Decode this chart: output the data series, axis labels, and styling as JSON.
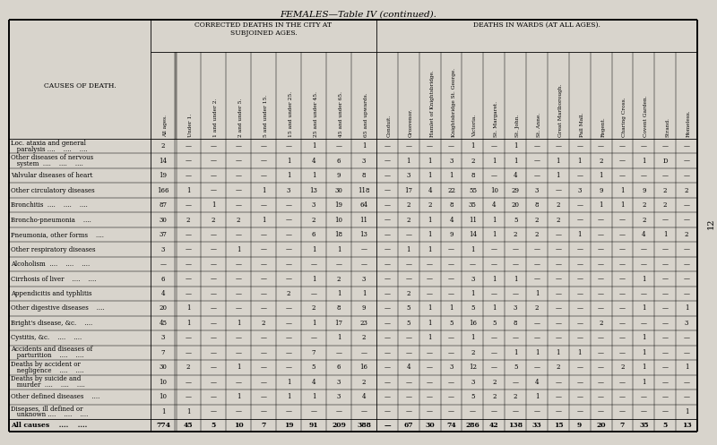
{
  "title": "FEMALES—Table IV (continued).",
  "bg_color": "#d8d4cc",
  "causes": [
    [
      "Loc. ataxia and general",
      "   paralysis ....    ....    ...."
    ],
    [
      "Other diseases of nervous",
      "   system  ....    ....    ...."
    ],
    [
      "Valvular diseases of heart",
      ""
    ],
    [
      "Other circulatory diseases",
      ""
    ],
    [
      "Bronchitis  ....    ....    ....",
      ""
    ],
    [
      "Broncho-pneumonia    ....",
      ""
    ],
    [
      "Pneumonia, other forms    ....",
      ""
    ],
    [
      "Other respiratory diseases",
      ""
    ],
    [
      "Alcoholism  ....    ....    ....",
      ""
    ],
    [
      "Cirrhosis of liver    ....    ....",
      ""
    ],
    [
      "Appendicitis and typhlitis",
      ""
    ],
    [
      "Other digestive diseases    ....",
      ""
    ],
    [
      "Bright's disease, &c.    ....",
      ""
    ],
    [
      "Cystitis, &c.    ....    ....",
      ""
    ],
    [
      "Accidents and diseases of",
      "   parturition    ....    ...."
    ],
    [
      "Deaths by accident or",
      "   negligence    ....    ...."
    ],
    [
      "Deaths by suicide and",
      "   murder  ....    ....    ...."
    ],
    [
      "Other defined diseases    ....",
      ""
    ],
    [
      "Diseases, ill defined or",
      "   unknown ....    ....    ...."
    ],
    [
      "All causes    ....    ....",
      ""
    ]
  ],
  "age_headers": [
    "All ages.",
    "Under 1.",
    "1 and under 2.",
    "2 and under 5.",
    "5 and under 15.",
    "15 and under 25.",
    "25 and under 45.",
    "45 and under 65.",
    "65 and upwards."
  ],
  "ward_headers": [
    "Conduit.",
    "Grosvenor.",
    "Hamlet of Knightsbridge.",
    "Knightsbridge St. George.",
    "Victoria.",
    "St. Margaret.",
    "St. John.",
    "St. Anne.",
    "Great Marlborough.",
    "Pall Mall.",
    "Regent.",
    "Charing Cross.",
    "Covent Garden.",
    "Strand.",
    "Homeless."
  ],
  "data": [
    [
      2,
      "—",
      "—",
      "—",
      "—",
      "—",
      1,
      "—",
      1,
      "—",
      "—",
      "—",
      "—",
      1,
      "—",
      1,
      "—",
      "—",
      "—",
      "—",
      "—",
      "—",
      "—",
      "—"
    ],
    [
      14,
      "—",
      "—",
      "—",
      "—",
      1,
      4,
      6,
      3,
      "—",
      1,
      1,
      3,
      2,
      1,
      1,
      "—",
      1,
      1,
      2,
      "—",
      1,
      "D",
      "—"
    ],
    [
      19,
      "—",
      "—",
      "—",
      "—",
      1,
      1,
      9,
      8,
      "—",
      3,
      1,
      1,
      8,
      "—",
      4,
      "—",
      1,
      "—",
      1,
      "—",
      "—",
      "—",
      "—"
    ],
    [
      166,
      1,
      "—",
      "—",
      1,
      3,
      13,
      30,
      118,
      "—",
      17,
      4,
      22,
      55,
      10,
      29,
      3,
      "—",
      3,
      9,
      1,
      9,
      2,
      2
    ],
    [
      87,
      "—",
      1,
      "—",
      "—",
      "—",
      3,
      19,
      64,
      "—",
      2,
      2,
      8,
      35,
      4,
      20,
      8,
      2,
      "—",
      1,
      1,
      2,
      2,
      "—"
    ],
    [
      30,
      2,
      2,
      2,
      1,
      "—",
      2,
      10,
      11,
      "—",
      2,
      1,
      4,
      11,
      1,
      5,
      2,
      2,
      "—",
      "—",
      "—",
      2,
      "—",
      "—"
    ],
    [
      37,
      "—",
      "—",
      "—",
      "—",
      "—",
      6,
      18,
      13,
      "—",
      "—",
      1,
      9,
      14,
      1,
      2,
      2,
      "—",
      1,
      "—",
      "—",
      4,
      1,
      2
    ],
    [
      3,
      "—",
      "—",
      1,
      "—",
      "—",
      1,
      1,
      "—",
      "—",
      1,
      1,
      "—",
      1,
      "—",
      "—",
      "—",
      "—",
      "—",
      "—",
      "—",
      "—",
      "—",
      "—"
    ],
    [
      "—",
      "—",
      "—",
      "—",
      "—",
      "—",
      "—",
      "—",
      "—",
      "—",
      "—",
      "—",
      "—",
      "—",
      "—",
      "—",
      "—",
      "—",
      "—",
      "—",
      "—",
      "—",
      "—",
      "—"
    ],
    [
      6,
      "—",
      "—",
      "—",
      "—",
      "—",
      1,
      2,
      3,
      "—",
      "—",
      "—",
      "—",
      3,
      1,
      1,
      "—",
      "—",
      "—",
      "—",
      "—",
      1,
      "—",
      "—"
    ],
    [
      4,
      "—",
      "—",
      "—",
      "—",
      2,
      "—",
      1,
      1,
      "—",
      2,
      "—",
      "—",
      1,
      "—",
      "—",
      1,
      "—",
      "—",
      "—",
      "—",
      "—",
      "—",
      "—"
    ],
    [
      20,
      1,
      "—",
      "—",
      "—",
      "—",
      2,
      8,
      9,
      "—",
      5,
      1,
      1,
      5,
      1,
      3,
      2,
      "—",
      "—",
      "—",
      "—",
      1,
      "—",
      1
    ],
    [
      45,
      1,
      "—",
      1,
      2,
      "—",
      1,
      17,
      23,
      "—",
      5,
      1,
      5,
      16,
      5,
      8,
      "—",
      "—",
      "—",
      2,
      "—",
      "—",
      "—",
      3
    ],
    [
      3,
      "—",
      "—",
      "—",
      "—",
      "—",
      "—",
      1,
      2,
      "—",
      "—",
      1,
      "—",
      1,
      "—",
      "—",
      "—",
      "—",
      "—",
      "—",
      "—",
      1,
      "—",
      "—"
    ],
    [
      7,
      "—",
      "—",
      "—",
      "—",
      "—",
      7,
      "—",
      "—",
      "—",
      "—",
      "—",
      "—",
      2,
      "—",
      1,
      1,
      1,
      1,
      "—",
      "—",
      1,
      "—",
      "—"
    ],
    [
      30,
      2,
      "—",
      1,
      "—",
      "—",
      5,
      6,
      16,
      "—",
      4,
      "—",
      3,
      12,
      "—",
      5,
      "—",
      2,
      "—",
      "—",
      2,
      1,
      "—",
      1
    ],
    [
      10,
      "—",
      "—",
      "—",
      "—",
      1,
      4,
      3,
      2,
      "—",
      "—",
      "—",
      "—",
      3,
      2,
      "—",
      4,
      "—",
      "—",
      "—",
      "—",
      1,
      "—",
      "—"
    ],
    [
      10,
      "—",
      "—",
      1,
      "—",
      1,
      1,
      3,
      4,
      "—",
      "—",
      "—",
      "—",
      5,
      2,
      2,
      1,
      "—",
      "—",
      "—",
      "—",
      "—",
      "—",
      "—"
    ],
    [
      1,
      1,
      "—",
      "—",
      "—",
      "—",
      "—",
      "—",
      "—",
      "—",
      "—",
      "—",
      "—",
      "—",
      "—",
      "—",
      "—",
      "—",
      "—",
      "—",
      "—",
      "—",
      "—",
      1
    ],
    [
      774,
      45,
      5,
      10,
      7,
      19,
      91,
      209,
      388,
      "—",
      67,
      30,
      74,
      286,
      42,
      138,
      33,
      15,
      9,
      20,
      7,
      35,
      5,
      13
    ]
  ],
  "page_num": "12"
}
